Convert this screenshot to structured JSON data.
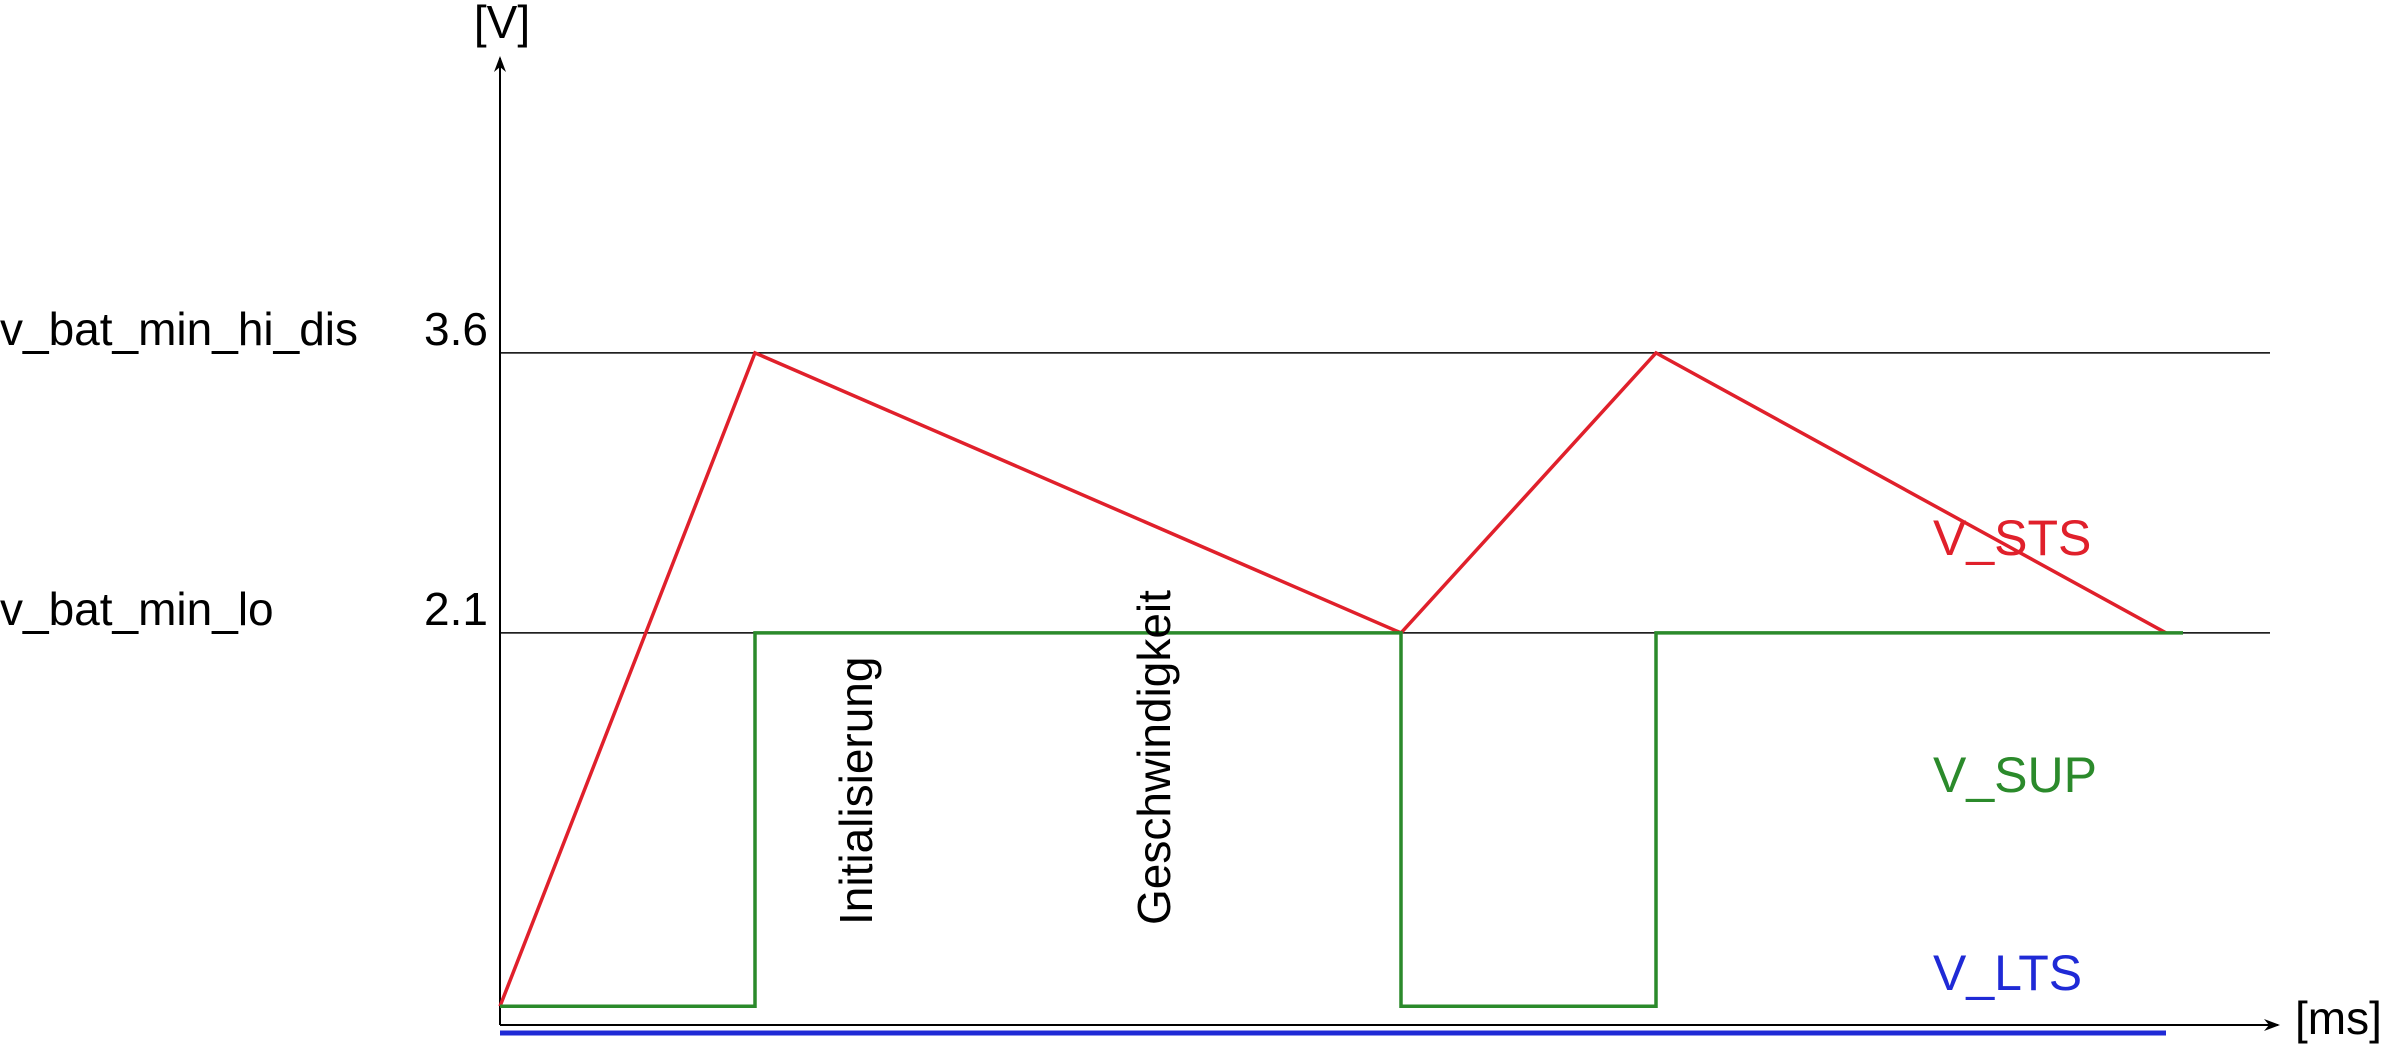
{
  "chart_data": {
    "type": "line",
    "xlabel": "[ms]",
    "ylabel": "[V]",
    "ylim": [
      0,
      5
    ],
    "xlim": [
      0,
      10
    ],
    "grid": false,
    "reference_lines": [
      {
        "name": "v_bat_min_hi_dis",
        "value": 3.6,
        "tick_label": "3.6"
      },
      {
        "name": "v_bat_min_lo",
        "value": 2.1,
        "tick_label": "2.1"
      }
    ],
    "series": [
      {
        "name": "V_STS",
        "color": "#e0202b",
        "points": [
          [
            0.0,
            0.1
          ],
          [
            1.5,
            3.6
          ],
          [
            5.3,
            2.1
          ],
          [
            6.8,
            3.6
          ],
          [
            9.8,
            2.1
          ]
        ]
      },
      {
        "name": "V_SUP",
        "color": "#2b8a2b",
        "points": [
          [
            0.0,
            0.1
          ],
          [
            1.5,
            0.1
          ],
          [
            1.5,
            2.1
          ],
          [
            5.3,
            2.1
          ],
          [
            5.3,
            0.1
          ],
          [
            6.8,
            0.1
          ],
          [
            6.8,
            2.1
          ],
          [
            9.9,
            2.1
          ]
        ]
      },
      {
        "name": "V_LTS",
        "color": "#1f2ad6",
        "points": [
          [
            0.0,
            0.0
          ],
          [
            9.8,
            0.0
          ]
        ]
      }
    ],
    "annotations": [
      {
        "text": "Initialisierung",
        "x": 2.0,
        "y": 0.9,
        "rotation": -90
      },
      {
        "text": "Geschwindigkeit",
        "x": 3.6,
        "y": 0.9,
        "rotation": -90
      }
    ]
  }
}
